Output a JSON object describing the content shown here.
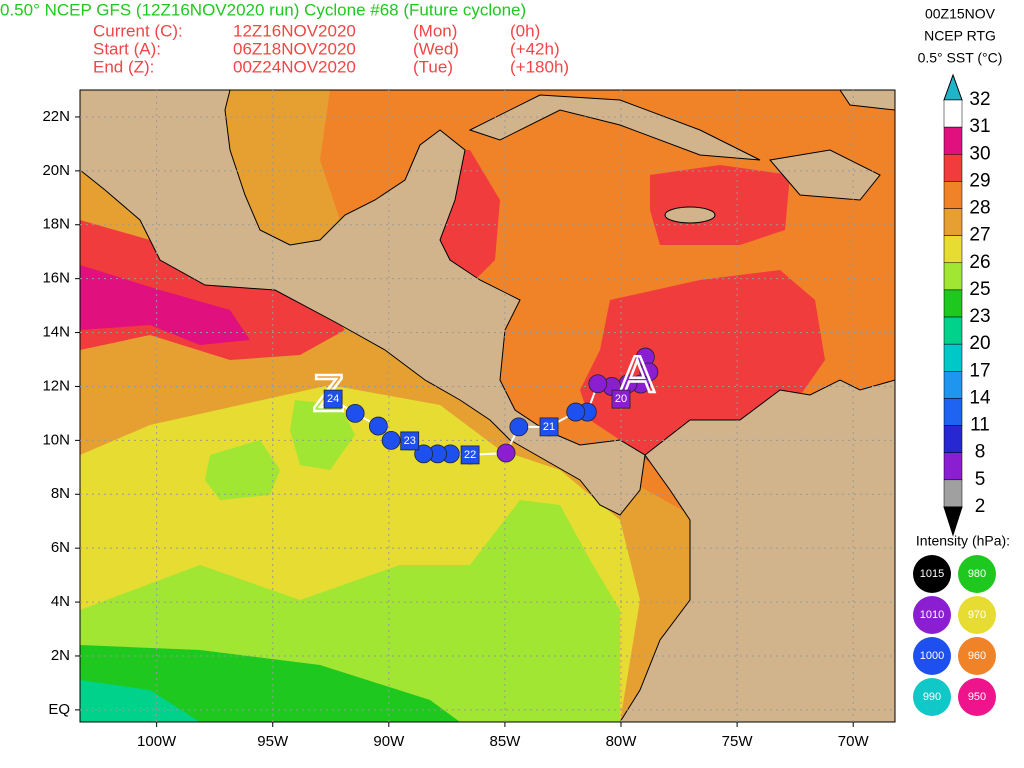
{
  "header": {
    "title": "0.50° NCEP GFS (12Z16NOV2020 run) Cyclone #68 (Future cyclone)",
    "lines": [
      {
        "label": "Current (C):",
        "time": "12Z16NOV2020",
        "day": "(Mon)",
        "offset": "(0h)"
      },
      {
        "label": "Start (A):",
        "time": "06Z18NOV2020",
        "day": "(Wed)",
        "offset": "(+42h)"
      },
      {
        "label": "End (Z):",
        "time": "00Z24NOV2020",
        "day": "(Tue)",
        "offset": "(+180h)"
      }
    ],
    "sst_date": "00Z15NOV",
    "sst_source": "NCEP RTG",
    "sst_title": "0.5° SST (°C)"
  },
  "colorbar": {
    "levels": [
      32,
      31,
      30,
      29,
      28,
      27,
      26,
      25,
      23,
      20,
      17,
      14,
      11,
      8,
      5,
      2
    ],
    "colors": [
      "#ffffff",
      "#e0107f",
      "#f03c3c",
      "#f08228",
      "#e6a032",
      "#e6dc32",
      "#a0e632",
      "#1ec81e",
      "#00d28c",
      "#00c8c8",
      "#1e96f0",
      "#1e64f0",
      "#2828d2",
      "#8c1ed2",
      "#a0a0a0"
    ],
    "above_color": "#20b4c8",
    "below_color": "#000000"
  },
  "intensity_legend": {
    "title": "Intensity (hPa):",
    "items": [
      {
        "value": 1015,
        "color": "#000000"
      },
      {
        "value": 980,
        "color": "#1ec81e"
      },
      {
        "value": 1010,
        "color": "#8c1ed2"
      },
      {
        "value": 970,
        "color": "#e6dc32"
      },
      {
        "value": 1000,
        "color": "#1e50f0"
      },
      {
        "value": 960,
        "color": "#f08228"
      },
      {
        "value": 990,
        "color": "#10c8c8"
      },
      {
        "value": 950,
        "color": "#f0148c"
      }
    ]
  },
  "map": {
    "xlim": [
      -103.3,
      -68.2
    ],
    "ylim": [
      -0.45,
      23.0
    ],
    "xticks": [
      {
        "value": -100,
        "label": "100W"
      },
      {
        "value": -95,
        "label": "95W"
      },
      {
        "value": -90,
        "label": "90W"
      },
      {
        "value": -85,
        "label": "85W"
      },
      {
        "value": -80,
        "label": "80W"
      },
      {
        "value": -75,
        "label": "75W"
      },
      {
        "value": -70,
        "label": "70W"
      }
    ],
    "yticks": [
      {
        "value": 0,
        "label": "EQ"
      },
      {
        "value": 2,
        "label": "2N"
      },
      {
        "value": 4,
        "label": "4N"
      },
      {
        "value": 6,
        "label": "6N"
      },
      {
        "value": 8,
        "label": "8N"
      },
      {
        "value": 10,
        "label": "10N"
      },
      {
        "value": 12,
        "label": "12N"
      },
      {
        "value": 14,
        "label": "14N"
      },
      {
        "value": 16,
        "label": "16N"
      },
      {
        "value": 18,
        "label": "18N"
      },
      {
        "value": 20,
        "label": "20N"
      },
      {
        "value": 22,
        "label": "22N"
      }
    ]
  },
  "track": {
    "points": [
      {
        "lon": -78.95,
        "lat": 13.09,
        "pressure": 1010
      },
      {
        "lon": -78.8,
        "lat": 12.54,
        "pressure": 1010
      },
      {
        "lon": -79.15,
        "lat": 12.09,
        "pressure": 1010
      },
      {
        "lon": -79.7,
        "lat": 12.1,
        "pressure": 1010
      },
      {
        "lon": -80.4,
        "lat": 12.0,
        "pressure": 1010
      },
      {
        "lon": -81.0,
        "lat": 12.1,
        "pressure": 1010
      },
      {
        "lon": -81.45,
        "lat": 11.05,
        "pressure": 1000
      },
      {
        "lon": -81.95,
        "lat": 11.05,
        "pressure": 1000
      },
      {
        "lon": -83.1,
        "lat": 10.5,
        "pressure": 1000
      },
      {
        "lon": -84.4,
        "lat": 10.5,
        "pressure": 1000
      },
      {
        "lon": -84.95,
        "lat": 9.53,
        "pressure": 1010
      },
      {
        "lon": -86.5,
        "lat": 9.46,
        "pressure": 1000
      },
      {
        "lon": -87.35,
        "lat": 9.5,
        "pressure": 1000
      },
      {
        "lon": -87.9,
        "lat": 9.5,
        "pressure": 1000
      },
      {
        "lon": -88.5,
        "lat": 9.5,
        "pressure": 1000
      },
      {
        "lon": -89.1,
        "lat": 9.98,
        "pressure": 1000
      },
      {
        "lon": -89.9,
        "lat": 10.0,
        "pressure": 1000
      },
      {
        "lon": -90.45,
        "lat": 10.53,
        "pressure": 1000
      },
      {
        "lon": -91.45,
        "lat": 11.0,
        "pressure": 1000
      },
      {
        "lon": -92.4,
        "lat": 11.53,
        "pressure": 1000
      }
    ],
    "days": [
      {
        "label": "20",
        "lon": -80.0,
        "lat": 11.53,
        "pressure": 1010
      },
      {
        "label": "21",
        "lon": -83.1,
        "lat": 10.5,
        "pressure": 1000
      },
      {
        "label": "22",
        "lon": -86.5,
        "lat": 9.46,
        "pressure": 1000
      },
      {
        "label": "23",
        "lon": -89.1,
        "lat": 9.98,
        "pressure": 1000
      },
      {
        "label": "24",
        "lon": -92.4,
        "lat": 11.53,
        "pressure": 1000
      }
    ],
    "start": {
      "label": "A",
      "lon": -79.3,
      "lat": 12.3
    },
    "end": {
      "label": "Z",
      "lon": -92.6,
      "lat": 11.6
    }
  }
}
